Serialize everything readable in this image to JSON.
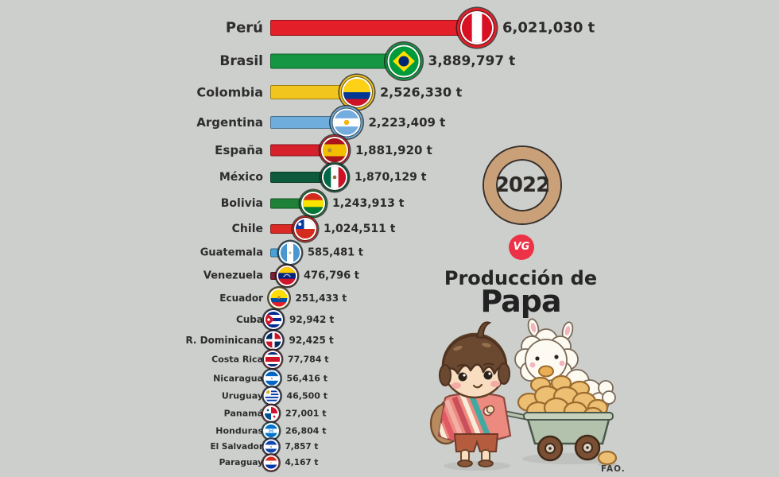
{
  "background_color": "#cdcfcc",
  "branding": {
    "year": "2022",
    "ring_color": "#C9A078",
    "logo": "VG",
    "logo_color": "#ED3146",
    "title_line1": "Producción de",
    "title_line2": "Papa",
    "source": "FAO."
  },
  "chart_data": {
    "type": "bar",
    "orientation": "horizontal",
    "title": "Producción de Papa",
    "year": "2022",
    "unit": "t",
    "source": "FAO.",
    "xlim": [
      0,
      6021030
    ],
    "countries": [
      {
        "name": "Perú",
        "value": 6021030,
        "value_label": "6,021,030 t",
        "color": "#E3202A",
        "flag": {
          "t": "v",
          "s": [
            [
              "#D91023",
              1
            ],
            [
              "#FFFFFF",
              1
            ],
            [
              "#D91023",
              1
            ]
          ]
        }
      },
      {
        "name": "Brasil",
        "value": 3889797,
        "value_label": "3,889,797 t",
        "color": "#149643",
        "flag": {
          "t": "brasil",
          "green": "#009C3B",
          "yellow": "#FFDF00",
          "blue": "#002776"
        }
      },
      {
        "name": "Colombia",
        "value": 2526330,
        "value_label": "2,526,330 t",
        "color": "#F2C51E",
        "flag": {
          "t": "h",
          "s": [
            [
              "#FCD116",
              2
            ],
            [
              "#003893",
              1
            ],
            [
              "#CE1126",
              1
            ]
          ]
        }
      },
      {
        "name": "Argentina",
        "value": 2223409,
        "value_label": "2,223,409 t",
        "color": "#6FAEDC",
        "flag": {
          "t": "h",
          "s": [
            [
              "#74ACDF",
              1
            ],
            [
              "#FFFFFF",
              1
            ],
            [
              "#74ACDF",
              1
            ]
          ],
          "o": [
            {
              "k": "dot",
              "x": 24,
              "y": 24,
              "r": 5,
              "c": "#F6B40E"
            }
          ]
        }
      },
      {
        "name": "España",
        "value": 1881920,
        "value_label": "1,881,920 t",
        "color": "#D6202B",
        "flag": {
          "t": "h",
          "s": [
            [
              "#AA151B",
              1
            ],
            [
              "#F1BF00",
              2
            ],
            [
              "#AA151B",
              1
            ]
          ],
          "o": [
            {
              "k": "dot",
              "x": 14,
              "y": 24,
              "r": 4,
              "c": "#B08A3E"
            }
          ]
        }
      },
      {
        "name": "México",
        "value": 1870129,
        "value_label": "1,870,129 t",
        "color": "#0D5A3C",
        "flag": {
          "t": "v",
          "s": [
            [
              "#006847",
              1
            ],
            [
              "#FFFFFF",
              1
            ],
            [
              "#CE1126",
              1
            ]
          ],
          "o": [
            {
              "k": "dot",
              "x": 24,
              "y": 24,
              "r": 4,
              "c": "#8A6D3B"
            }
          ]
        }
      },
      {
        "name": "Bolivia",
        "value": 1243913,
        "value_label": "1,243,913 t",
        "color": "#1F8038",
        "flag": {
          "t": "h",
          "s": [
            [
              "#D52B1E",
              1
            ],
            [
              "#F9E300",
              1
            ],
            [
              "#007934",
              1
            ]
          ]
        }
      },
      {
        "name": "Chile",
        "value": 1024511,
        "value_label": "1,024,511 t",
        "color": "#DB2A26",
        "flag": {
          "t": "chile",
          "blue": "#0039A6",
          "red": "#D52B1E"
        }
      },
      {
        "name": "Guatemala",
        "value": 585481,
        "value_label": "585,481 t",
        "color": "#48A2D5",
        "flag": {
          "t": "v",
          "s": [
            [
              "#4997D0",
              1
            ],
            [
              "#FFFFFF",
              1
            ],
            [
              "#4997D0",
              1
            ]
          ],
          "o": [
            {
              "k": "dot",
              "x": 24,
              "y": 24,
              "r": 3,
              "c": "#9BB89B"
            }
          ]
        }
      },
      {
        "name": "Venezuela",
        "value": 476796,
        "value_label": "476,796 t",
        "color": "#7C2034",
        "flag": {
          "t": "h",
          "s": [
            [
              "#FFCC00",
              1
            ],
            [
              "#00247D",
              1
            ],
            [
              "#CF142B",
              1
            ]
          ],
          "o": [
            {
              "k": "dot",
              "x": 16,
              "y": 25,
              "r": 1.8,
              "c": "#FFFFFF"
            },
            {
              "k": "dot",
              "x": 19.5,
              "y": 21.8,
              "r": 1.8,
              "c": "#FFFFFF"
            },
            {
              "k": "dot",
              "x": 24,
              "y": 20.6,
              "r": 1.8,
              "c": "#FFFFFF"
            },
            {
              "k": "dot",
              "x": 28.5,
              "y": 21.8,
              "r": 1.8,
              "c": "#FFFFFF"
            },
            {
              "k": "dot",
              "x": 32,
              "y": 25,
              "r": 1.8,
              "c": "#FFFFFF"
            }
          ]
        }
      },
      {
        "name": "Ecuador",
        "value": 251433,
        "value_label": "251,433 t",
        "color": "#E5C922",
        "flag": {
          "t": "h",
          "s": [
            [
              "#FFDD00",
              2
            ],
            [
              "#034EA2",
              1
            ],
            [
              "#ED1C24",
              1
            ]
          ],
          "o": [
            {
              "k": "dot",
              "x": 24,
              "y": 22,
              "r": 4,
              "c": "#B08A3E"
            }
          ]
        }
      },
      {
        "name": "Cuba",
        "value": 92942,
        "value_label": "92,942 t",
        "color": "#20398A",
        "flag": {
          "t": "cuba",
          "blue": "#002A8F",
          "red": "#CF142B"
        }
      },
      {
        "name": "R. Dominicana",
        "value": 92425,
        "value_label": "92,425 t",
        "color": "#1E2F72",
        "flag": {
          "t": "domrep",
          "blue": "#002D62",
          "red": "#CE1126"
        }
      },
      {
        "name": "Costa Rica",
        "value": 77784,
        "value_label": "77,784 t",
        "color": "#C8242B",
        "flag": {
          "t": "h",
          "s": [
            [
              "#002B7F",
              1
            ],
            [
              "#FFFFFF",
              1
            ],
            [
              "#CE1126",
              2
            ],
            [
              "#FFFFFF",
              1
            ],
            [
              "#002B7F",
              1
            ]
          ]
        }
      },
      {
        "name": "Nicaragua",
        "value": 56416,
        "value_label": "56,416 t",
        "color": "#2E74C4",
        "flag": {
          "t": "h",
          "s": [
            [
              "#0067C6",
              1
            ],
            [
              "#FFFFFF",
              1
            ],
            [
              "#0067C6",
              1
            ]
          ],
          "o": [
            {
              "k": "dot",
              "x": 24,
              "y": 24,
              "r": 3,
              "c": "#59A8DC"
            }
          ]
        }
      },
      {
        "name": "Uruguay",
        "value": 46500,
        "value_label": "46,500 t",
        "color": "#2B3F8E",
        "flag": {
          "t": "uruguay",
          "blue": "#0038A8",
          "sun": "#F6B40E"
        }
      },
      {
        "name": "Panamá",
        "value": 27001,
        "value_label": "27,001 t",
        "color": "#C8283B",
        "flag": {
          "t": "panama",
          "blue": "#005293",
          "red": "#D21034"
        }
      },
      {
        "name": "Honduras",
        "value": 26804,
        "value_label": "26,804 t",
        "color": "#32B7B2",
        "flag": {
          "t": "h",
          "s": [
            [
              "#0073CF",
              1
            ],
            [
              "#FFFFFF",
              1
            ],
            [
              "#0073CF",
              1
            ]
          ],
          "o": [
            {
              "k": "dot",
              "x": 24,
              "y": 24,
              "r": 2.2,
              "c": "#0073CF"
            },
            {
              "k": "dot",
              "x": 18,
              "y": 21,
              "r": 2.2,
              "c": "#0073CF"
            },
            {
              "k": "dot",
              "x": 30,
              "y": 21,
              "r": 2.2,
              "c": "#0073CF"
            },
            {
              "k": "dot",
              "x": 18,
              "y": 27,
              "r": 2.2,
              "c": "#0073CF"
            },
            {
              "k": "dot",
              "x": 30,
              "y": 27,
              "r": 2.2,
              "c": "#0073CF"
            }
          ]
        }
      },
      {
        "name": "El Salvador",
        "value": 7857,
        "value_label": "7,857 t",
        "color": "#2B58A8",
        "flag": {
          "t": "h",
          "s": [
            [
              "#0F47AF",
              1
            ],
            [
              "#FFFFFF",
              1
            ],
            [
              "#0F47AF",
              1
            ]
          ],
          "o": [
            {
              "k": "dot",
              "x": 24,
              "y": 24,
              "r": 3,
              "c": "#6A8F5A"
            }
          ]
        }
      },
      {
        "name": "Paraguay",
        "value": 4167,
        "value_label": "4,167 t",
        "color": "#C2292D",
        "flag": {
          "t": "h",
          "s": [
            [
              "#D52B1E",
              1
            ],
            [
              "#FFFFFF",
              1
            ],
            [
              "#0038A8",
              1
            ]
          ],
          "o": [
            {
              "k": "dot",
              "x": 24,
              "y": 24,
              "r": 2.5,
              "c": "#C9A227"
            }
          ]
        }
      }
    ]
  }
}
